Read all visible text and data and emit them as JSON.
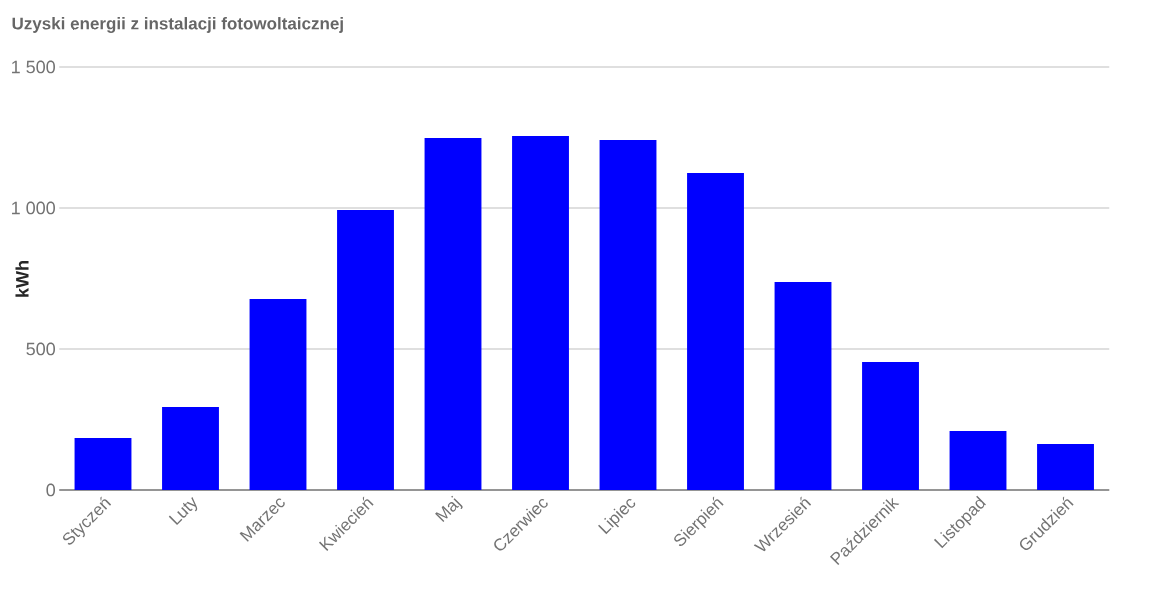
{
  "chart_data": {
    "type": "bar",
    "title": "Uzyski energii z instalacji fotowoltaicznej",
    "ylabel": "kWh",
    "categories": [
      "Styczeń",
      "Luty",
      "Marzec",
      "Kwiecień",
      "Maj",
      "Czerwiec",
      "Lipiec",
      "Sierpień",
      "Wrzesień",
      "Październik",
      "Listopad",
      "Grudzień"
    ],
    "values": [
      184,
      294,
      677,
      993,
      1248,
      1255,
      1241,
      1124,
      738,
      454,
      209,
      163
    ],
    "color": "#0000ff",
    "ylim": [
      0,
      1500
    ],
    "yticks": [
      0,
      500,
      {
        "value": 1000,
        "label": "1 000"
      },
      {
        "value": 1500,
        "label": "1 500"
      }
    ],
    "grid": "y"
  }
}
